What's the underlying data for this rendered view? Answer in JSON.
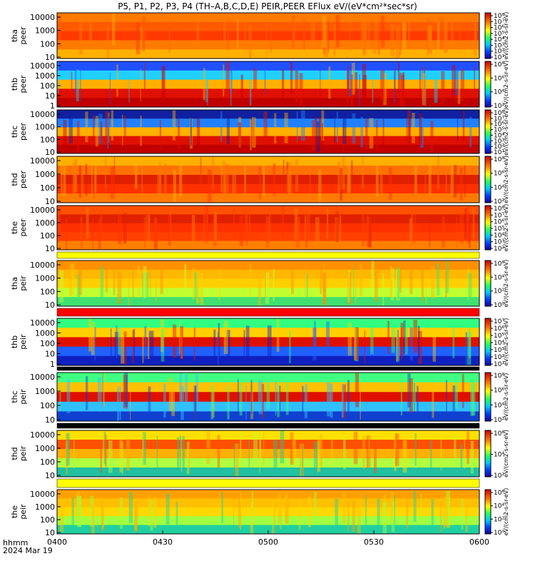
{
  "title": "P5, P1, P2, P3, P4 (TH–A,B,C,D,E) PEIR,PEER EFlux eV/(eV*cm²*sec*sr)",
  "footer": {
    "time_label": "hhmm",
    "date_label": "2024 Mar 19"
  },
  "x_ticks": [
    "0400",
    "0430",
    "0500",
    "0530",
    "0600"
  ],
  "y_ticks": [
    "10000",
    "1000",
    "100",
    "10",
    "1"
  ],
  "colorbar_unit": "eV/(cm2-s-sr-eV)",
  "colors": {
    "line": "#000000",
    "gap_red": "#ff0000",
    "gap_yellow": "#ffff00"
  },
  "chart_data": [
    {
      "type": "heatmap",
      "probe": "tha",
      "product": "peer",
      "ylabel": "tha peer",
      "ytick_labels": [
        "10000",
        "1000",
        "100",
        "10"
      ],
      "cbar_labels": [
        "10⁸",
        "10⁷",
        "10⁶",
        "10⁵",
        "10⁴",
        "10³",
        "10²",
        "10¹"
      ]
    },
    {
      "type": "heatmap",
      "probe": "thb",
      "product": "peer",
      "ylabel": "thb peer",
      "ytick_labels": [
        "10000",
        "1000",
        "100",
        "10",
        "1"
      ],
      "cbar_labels": [
        "10⁸",
        "10⁶",
        "10⁴",
        "10²"
      ]
    },
    {
      "type": "heatmap",
      "probe": "thc",
      "product": "peer",
      "ylabel": "thc peer",
      "ytick_labels": [
        "10000",
        "1000",
        "100",
        "10"
      ],
      "cbar_labels": [
        "10⁸",
        "10⁷",
        "10⁶",
        "10⁵",
        "10⁴",
        "10³",
        "10²",
        "10¹"
      ]
    },
    {
      "type": "heatmap",
      "probe": "thd",
      "product": "peer",
      "ylabel": "thd peer",
      "ytick_labels": [
        "10000",
        "1000",
        "100",
        "10"
      ],
      "cbar_labels": [
        "10⁸",
        "10⁶",
        "10⁴",
        "10²"
      ]
    },
    {
      "type": "heatmap",
      "probe": "the",
      "product": "peer",
      "ylabel": "the peer",
      "ytick_labels": [
        "10000",
        "1000",
        "100",
        "10"
      ],
      "cbar_labels": [
        "10⁸",
        "10⁷",
        "10⁶",
        "10⁵",
        "10⁴",
        "10³",
        "10²"
      ]
    },
    {
      "type": "heatmap",
      "probe": "tha",
      "product": "peir",
      "ylabel": "tha peir",
      "ytick_labels": [
        "10000",
        "1000",
        "100",
        "10"
      ],
      "cbar_labels": [
        "10⁶",
        "10⁴",
        "10²",
        "10⁰"
      ]
    },
    {
      "type": "heatmap",
      "probe": "thb",
      "product": "peir",
      "ylabel": "thb peir",
      "ytick_labels": [
        "10000",
        "1000",
        "100",
        "10",
        "1"
      ],
      "cbar_labels": [
        "10⁷",
        "10⁶",
        "10⁵",
        "10⁴",
        "10³",
        "10²",
        "10¹"
      ]
    },
    {
      "type": "heatmap",
      "probe": "thc",
      "product": "peir",
      "ylabel": "thc peir",
      "ytick_labels": [
        "10000",
        "1000",
        "100",
        "10"
      ],
      "cbar_labels": [
        "10⁸",
        "10⁶",
        "10⁴",
        "10²"
      ]
    },
    {
      "type": "heatmap",
      "probe": "thd",
      "product": "peir",
      "ylabel": "thd peir",
      "ytick_labels": [
        "10000",
        "1000",
        "100",
        "10"
      ],
      "cbar_labels": [
        "10⁶",
        "10⁴",
        "10²"
      ]
    },
    {
      "type": "heatmap",
      "probe": "the",
      "product": "peir",
      "ylabel": "the peir",
      "ytick_labels": [
        "10000",
        "1000",
        "100",
        "10"
      ],
      "cbar_labels": [
        "10⁶",
        "10⁴",
        "10²",
        "10⁰"
      ]
    }
  ]
}
